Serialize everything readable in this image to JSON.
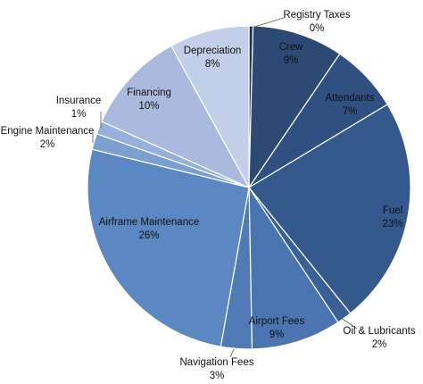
{
  "chart_data": {
    "type": "pie",
    "title": "",
    "start_angle_deg": 0,
    "direction": "clockwise",
    "slices": [
      {
        "name": "Registry Taxes",
        "pct_label": "0%",
        "value": 0.4,
        "color": "#20344f"
      },
      {
        "name": "Crew",
        "pct_label": "9%",
        "value": 9.1,
        "color": "#2c4a74"
      },
      {
        "name": "Attendants",
        "pct_label": "7%",
        "value": 6.9,
        "color": "#2f5081"
      },
      {
        "name": "Fuel",
        "pct_label": "23%",
        "value": 22.8,
        "color": "#35598d"
      },
      {
        "name": "Oil & Lubricants",
        "pct_label": "2%",
        "value": 1.5,
        "color": "#3a6097"
      },
      {
        "name": "Airport Fees",
        "pct_label": "9%",
        "value": 9.0,
        "color": "#4a75b1"
      },
      {
        "name": "Navigation Fees",
        "pct_label": "3%",
        "value": 3.1,
        "color": "#4f7ab5"
      },
      {
        "name": "Airframe Maintenance",
        "pct_label": "26%",
        "value": 26.0,
        "color": "#5b87c2"
      },
      {
        "name": "Engine Maintenance",
        "pct_label": "2%",
        "value": 1.6,
        "color": "#7c9fd2"
      },
      {
        "name": "Insurance",
        "pct_label": "1%",
        "value": 1.3,
        "color": "#95b0da"
      },
      {
        "name": "Financing",
        "pct_label": "10%",
        "value": 10.3,
        "color": "#aab9de"
      },
      {
        "name": "Depreciation",
        "pct_label": "8%",
        "value": 8.0,
        "color": "#c3cfe8"
      }
    ]
  }
}
